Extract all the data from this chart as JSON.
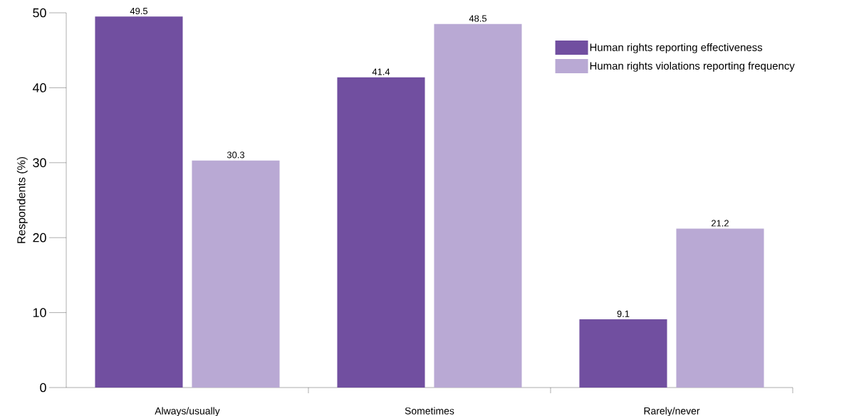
{
  "chart_data": {
    "type": "bar",
    "ylabel": "Respondents (%)",
    "categories": [
      "Always/usually",
      "Sometimes",
      "Rarely/never"
    ],
    "series": [
      {
        "name": "Human rights reporting effectiveness",
        "color": "#714fa0",
        "values": [
          49.5,
          41.4,
          9.1
        ]
      },
      {
        "name": "Human rights violations reporting frequency",
        "color": "#b9a9d4",
        "values": [
          30.3,
          48.5,
          21.2
        ]
      }
    ],
    "ylim": [
      0,
      50
    ],
    "yticks": [
      0,
      10,
      20,
      30,
      40,
      50
    ],
    "grid": false,
    "legend": "top right",
    "data_labels": true
  }
}
